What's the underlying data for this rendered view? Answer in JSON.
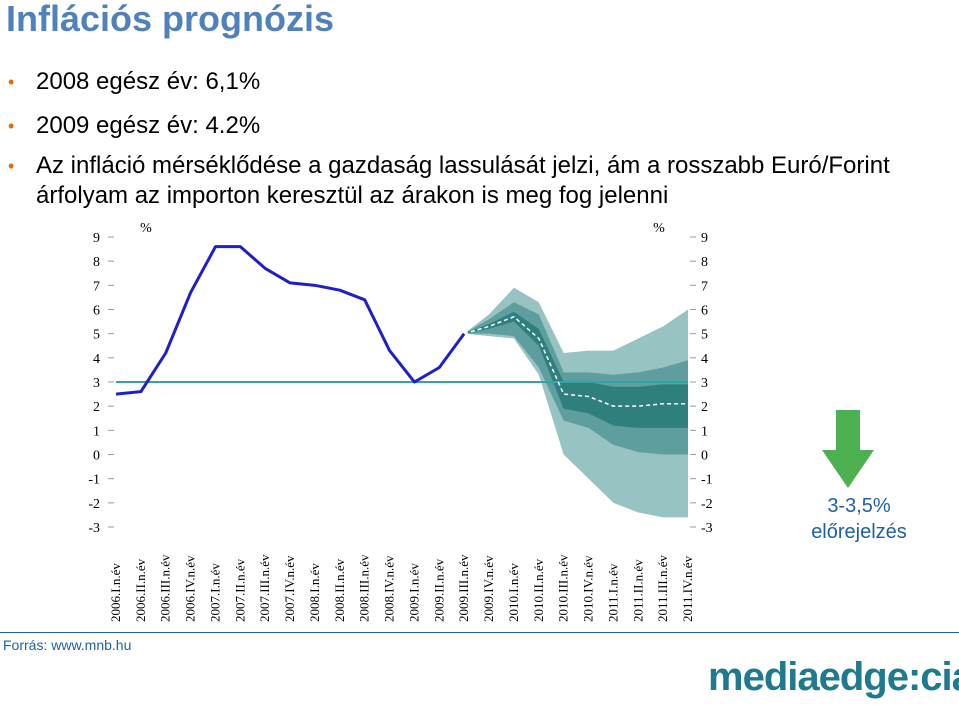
{
  "title": "Inflációs prognózis",
  "bullets": [
    "2008 egész év: 6,1%",
    "2009 egész év: 4.2%",
    "Az infláció mérséklődése a gazdaság lassulását jelzi, ám a rosszabb Euró/Forint",
    "árfolyam az importon keresztül az árakon is meg fog jelenni"
  ],
  "colors": {
    "title": "#4f81bd",
    "bullet": "#e46c0a",
    "actual_line": "#1f1fc8",
    "target_line": "#2aa8a8",
    "fan_outer": "#97c3c3",
    "fan_mid": "#5f9e9e",
    "fan_inner": "#2f7f7f",
    "arrow": "#4caf50",
    "text_blue": "#1f5fa8",
    "logo": "#1e7a8c"
  },
  "chart_data": {
    "type": "line",
    "left_unit": "%",
    "right_unit": "%",
    "ylim": [
      -3,
      9
    ],
    "yticks": [
      "9",
      "8",
      "7",
      "6",
      "5",
      "4",
      "3",
      "2",
      "1",
      "0",
      "-1",
      "-2",
      "-3"
    ],
    "categories": [
      "2006.I.n.év",
      "2006.II.n.év",
      "2006.III.n.év",
      "2006.IV.n.év",
      "2007.I.n.év",
      "2007.II.n.év",
      "2007.III.n.év",
      "2007.IV.n.év",
      "2008.I.n.év",
      "2008.II.n.év",
      "2008.III.n.év",
      "2008.IV.n.év",
      "2009.I.n.év",
      "2009.II.n.év",
      "2009.III.n.év",
      "2009.IV.n.év",
      "2010.I.n.év",
      "2010.II.n.év",
      "2010.III.n.év",
      "2010.IV.n.év",
      "2011.I.n.év",
      "2011.II.n.év",
      "2011.III.n.év",
      "2011.IV.n.év"
    ],
    "series": [
      {
        "values": [
          2.5,
          2.6,
          4.2,
          6.7,
          8.6,
          8.6,
          7.7,
          7.1,
          7.0,
          6.8,
          6.4,
          4.3,
          3.0,
          3.6,
          5.0,
          null,
          null,
          null,
          null,
          null,
          null,
          null,
          null,
          null
        ]
      },
      {
        "values": [
          null,
          null,
          null,
          null,
          null,
          null,
          null,
          null,
          null,
          null,
          null,
          null,
          null,
          null,
          5.0,
          5.3,
          5.7,
          4.8,
          2.5,
          2.4,
          2.0,
          2.0,
          2.1,
          2.1
        ]
      }
    ],
    "target": 3.0,
    "fan": {
      "start_index": 14,
      "outer_upper": [
        5.0,
        5.8,
        6.9,
        6.3,
        4.2,
        4.3,
        4.3,
        4.8,
        5.3,
        6.0
      ],
      "mid_upper": [
        5.0,
        5.6,
        6.3,
        5.8,
        3.4,
        3.4,
        3.3,
        3.4,
        3.6,
        3.9
      ],
      "inner_upper": [
        5.0,
        5.4,
        5.9,
        5.2,
        3.0,
        3.0,
        2.8,
        2.8,
        2.9,
        2.9
      ],
      "inner_lower": [
        5.0,
        5.2,
        5.5,
        4.5,
        1.9,
        1.7,
        1.2,
        1.1,
        1.1,
        1.1
      ],
      "mid_lower": [
        5.0,
        5.0,
        4.9,
        3.6,
        1.4,
        1.1,
        0.4,
        0.1,
        0.0,
        0.0
      ],
      "outer_lower": [
        5.0,
        4.9,
        4.8,
        3.3,
        0.0,
        -1.0,
        -2.0,
        -2.4,
        -2.6,
        -2.6
      ]
    }
  },
  "forecast_label": [
    "3-3,5%",
    "előrejelzés"
  ],
  "source": "Forrás: www.mnb.hu",
  "logo": "mediaedge:cia"
}
